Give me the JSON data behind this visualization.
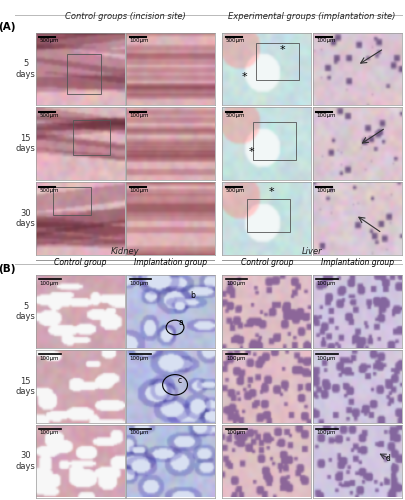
{
  "fig_width": 4.05,
  "fig_height": 5.0,
  "dpi": 100,
  "bg_color": "#ffffff",
  "label_A": "(A)",
  "label_B": "(B)",
  "section_A_title_left": "Control groups (incision site)",
  "section_A_title_right": "Experimental groups (implantation site)",
  "section_B_kidney": "Kidney",
  "section_B_liver": "Liver",
  "section_B_control": "Control group",
  "section_B_implant": "Implantation group",
  "row_labels_A": [
    "5\ndays",
    "15\ndays",
    "30\ndays"
  ],
  "row_labels_B": [
    "5\ndays",
    "15\ndays",
    "30\ndays"
  ],
  "title_fontsize": 6.0,
  "sublabel_fontsize": 5.5,
  "label_fontsize": 7.5,
  "row_label_fontsize": 6.0,
  "scale_fontsize": 4.0,
  "annotation_fontsize": 5.5
}
